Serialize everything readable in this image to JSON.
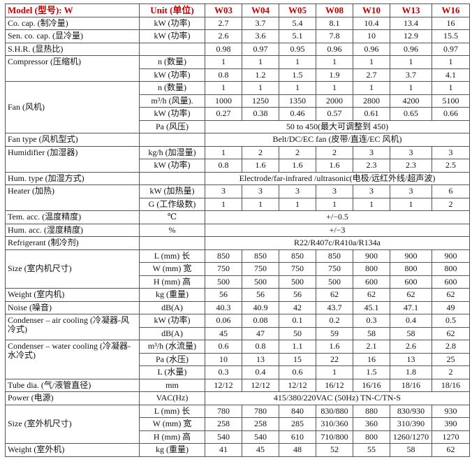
{
  "header": {
    "model": "Model (型号): W",
    "unit": "Unit (单位)",
    "models": [
      "W03",
      "W04",
      "W05",
      "W08",
      "W10",
      "W13",
      "W16"
    ]
  },
  "accent_color": "#c00000",
  "rows": [
    {
      "label": "Co. cap. (制冷量)",
      "span": 1,
      "unit": "kW (功率)",
      "values": [
        "2.7",
        "3.7",
        "5.4",
        "8.1",
        "10.4",
        "13.4",
        "16"
      ]
    },
    {
      "label": "Sen. co. cap. (显冷量)",
      "span": 1,
      "unit": "kW (功率)",
      "values": [
        "2.6",
        "3.6",
        "5.1",
        "7.8",
        "10",
        "12.9",
        "15.5"
      ]
    },
    {
      "label": "S.H.R. (显热比)",
      "span": 1,
      "unit": "",
      "values": [
        "0.98",
        "0.97",
        "0.95",
        "0.96",
        "0.96",
        "0.96",
        "0.97"
      ]
    },
    {
      "label": "Compressor (压缩机)",
      "span": 2,
      "top": true,
      "unit": "n (数量)",
      "values": [
        "1",
        "1",
        "1",
        "1",
        "1",
        "1",
        "1"
      ]
    },
    {
      "unit": "kW (功率)",
      "values": [
        "0.8",
        "1.2",
        "1.5",
        "1.9",
        "2.7",
        "3.7",
        "4.1"
      ]
    },
    {
      "label": "Fan (风机)",
      "span": 4,
      "unit": "n (数量)",
      "values": [
        "1",
        "1",
        "1",
        "1",
        "1",
        "1",
        "1"
      ]
    },
    {
      "unit": "m³/h (风量).",
      "values": [
        "1000",
        "1250",
        "1350",
        "2000",
        "2800",
        "4200",
        "5100"
      ]
    },
    {
      "unit": "kW (功率)",
      "values": [
        "0.27",
        "0.38",
        "0.46",
        "0.57",
        "0.61",
        "0.65",
        "0.66"
      ]
    },
    {
      "unit": "Pa (风压)",
      "merged": "50 to 450(最大可调整到 450)"
    },
    {
      "label": "Fan type (风机型式)",
      "span": 1,
      "unit": "",
      "merged": "Belt/DC/EC fan (皮带/直连/EC 风机)"
    },
    {
      "label": "Humidifier (加湿器)",
      "span": 2,
      "top": true,
      "unit": "kg/h (加湿量)",
      "values": [
        "1",
        "2",
        "2",
        "2",
        "3",
        "3",
        "3"
      ]
    },
    {
      "unit": "kW (功率)",
      "values": [
        "0.8",
        "1.6",
        "1.6",
        "1.6",
        "2.3",
        "2.3",
        "2.5"
      ]
    },
    {
      "label": "Hum. type (加湿方式)",
      "span": 1,
      "unit": "",
      "merged": "Electrode/far-infrared /ultrasonic(电极/远红外线/超声波)"
    },
    {
      "label": "Heater (加热)",
      "span": 2,
      "top": true,
      "unit": "kW (加热量)",
      "values": [
        "3",
        "3",
        "3",
        "3",
        "3",
        "3",
        "6"
      ]
    },
    {
      "unit": "G (工作级数)",
      "values": [
        "1",
        "1",
        "1",
        "1",
        "1",
        "1",
        "2"
      ]
    },
    {
      "label": "Tem. acc. (温度精度)",
      "span": 1,
      "unit": "℃",
      "merged": "+/−0.5"
    },
    {
      "label": "Hum. acc. (湿度精度)",
      "span": 1,
      "unit": "%",
      "merged": "+/−3"
    },
    {
      "label": "Refrigerant (制冷剂)",
      "span": 1,
      "unit": "",
      "merged": "R22/R407c/R410a/R134a"
    },
    {
      "label": "Size (室内机尺寸)",
      "span": 3,
      "unit": "L (mm) 长",
      "values": [
        "850",
        "850",
        "850",
        "850",
        "900",
        "900",
        "900"
      ]
    },
    {
      "unit": "W (mm) 宽",
      "values": [
        "750",
        "750",
        "750",
        "750",
        "800",
        "800",
        "800"
      ]
    },
    {
      "unit": "H (mm) 高",
      "values": [
        "500",
        "500",
        "500",
        "500",
        "600",
        "600",
        "600"
      ]
    },
    {
      "label": "Weight (室内机)",
      "span": 1,
      "unit": "kg (重量)",
      "values": [
        "56",
        "56",
        "56",
        "62",
        "62",
        "62",
        "62"
      ]
    },
    {
      "label": "Noise (噪音)",
      "span": 1,
      "unit": "dB(A)",
      "values": [
        "40.3",
        "40.9",
        "42",
        "43.7",
        "45.1",
        "47.1",
        "49"
      ]
    },
    {
      "label": "Condenser – air cooling (冷凝器-风冷式)",
      "span": 2,
      "top": true,
      "unit": "kW (功率)",
      "values": [
        "0.06",
        "0.08",
        "0.1",
        "0.2",
        "0.3",
        "0.4",
        "0.5"
      ]
    },
    {
      "unit": "dB(A)",
      "values": [
        "45",
        "47",
        "50",
        "59",
        "58",
        "58",
        "62"
      ]
    },
    {
      "label": "Condenser – water cooling (冷凝器-水冷式)",
      "span": 3,
      "top": true,
      "unit": "m³/h (水流量)",
      "values": [
        "0.6",
        "0.8",
        "1.1",
        "1.6",
        "2.1",
        "2.6",
        "2.8"
      ]
    },
    {
      "unit": "Pa (水压)",
      "values": [
        "10",
        "13",
        "15",
        "22",
        "16",
        "13",
        "25"
      ]
    },
    {
      "unit": "L (水量)",
      "values": [
        "0.3",
        "0.4",
        "0.6",
        "1",
        "1.5",
        "1.8",
        "2"
      ]
    },
    {
      "label": "Tube dia. (气/液管直径)",
      "span": 1,
      "unit": "mm",
      "values": [
        "12/12",
        "12/12",
        "12/12",
        "16/12",
        "16/16",
        "18/16",
        "18/16"
      ]
    },
    {
      "label": "Power (电源)",
      "span": 1,
      "unit": "VAC(Hz)",
      "merged": "415/380/220VAC (50Hz) TN-C/TN-S"
    },
    {
      "label": "Size (室外机尺寸)",
      "span": 3,
      "unit": "L (mm) 长",
      "values": [
        "780",
        "780",
        "840",
        "830/880",
        "880",
        "830/930",
        "930"
      ]
    },
    {
      "unit": "W (mm) 宽",
      "values": [
        "258",
        "258",
        "285",
        "310/360",
        "360",
        "310/390",
        "390"
      ]
    },
    {
      "unit": "H (mm) 高",
      "values": [
        "540",
        "540",
        "610",
        "710/800",
        "800",
        "1260/1270",
        "1270"
      ]
    },
    {
      "label": "Weight (室外机)",
      "span": 1,
      "unit": "kg (重量)",
      "values": [
        "41",
        "45",
        "48",
        "52",
        "55",
        "58",
        "62"
      ]
    }
  ]
}
